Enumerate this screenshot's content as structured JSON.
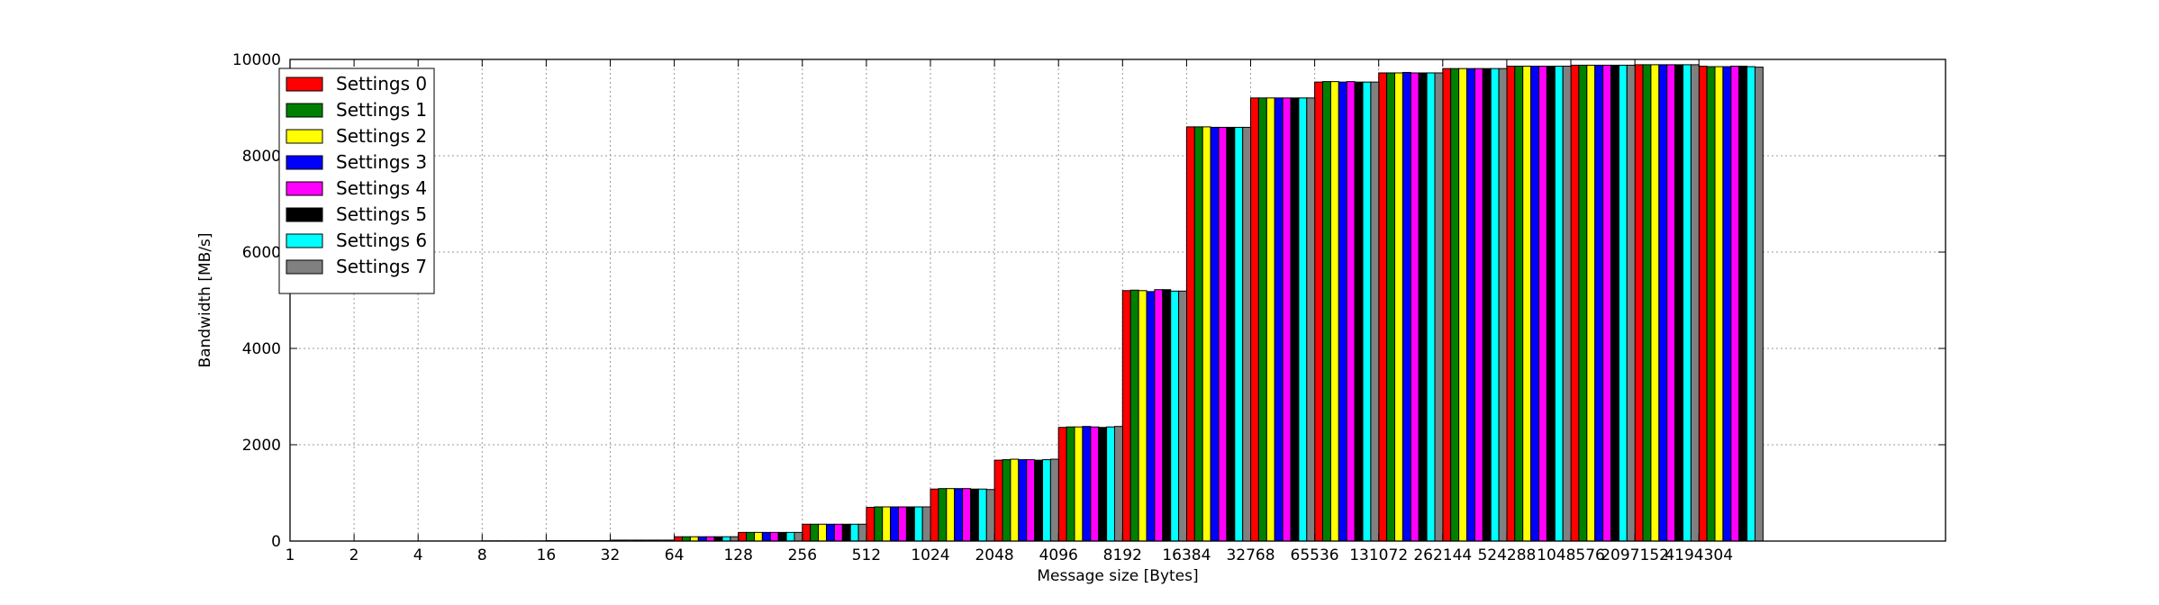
{
  "chart_data": {
    "type": "bar",
    "title": "",
    "xlabel": "Message size [Bytes]",
    "ylabel": "Bandwidth [MB/s]",
    "ylim": [
      0,
      10000
    ],
    "yticks": [
      0,
      2000,
      4000,
      6000,
      8000,
      10000
    ],
    "grid": true,
    "legend_position": "top-left",
    "categories": [
      "1",
      "2",
      "4",
      "8",
      "16",
      "32",
      "64",
      "128",
      "256",
      "512",
      "1024",
      "2048",
      "4096",
      "8192",
      "16384",
      "32768",
      "65536",
      "131072",
      "262144",
      "524288",
      "1048576",
      "2097152",
      "4194304"
    ],
    "series": [
      {
        "name": "Settings 0",
        "color": "#ff0000",
        "values": [
          0.5,
          1,
          2,
          5,
          10,
          20,
          90,
          180,
          350,
          700,
          1080,
          1680,
          2360,
          5200,
          8600,
          9200,
          9530,
          9720,
          9810,
          9860,
          9880,
          9890,
          9860
        ]
      },
      {
        "name": "Settings 1",
        "color": "#008000",
        "values": [
          0.5,
          1,
          2,
          5,
          10,
          20,
          90,
          180,
          350,
          710,
          1090,
          1690,
          2370,
          5210,
          8600,
          9200,
          9540,
          9720,
          9810,
          9860,
          9880,
          9890,
          9850
        ]
      },
      {
        "name": "Settings 2",
        "color": "#ffff00",
        "values": [
          0.5,
          1,
          2,
          5,
          10,
          20,
          90,
          180,
          350,
          710,
          1090,
          1700,
          2370,
          5200,
          8600,
          9200,
          9540,
          9720,
          9810,
          9860,
          9880,
          9890,
          9850
        ]
      },
      {
        "name": "Settings 3",
        "color": "#0000ff",
        "values": [
          0.5,
          1,
          2,
          5,
          10,
          20,
          90,
          180,
          350,
          710,
          1090,
          1690,
          2380,
          5180,
          8590,
          9200,
          9530,
          9730,
          9810,
          9860,
          9880,
          9890,
          9850
        ]
      },
      {
        "name": "Settings 4",
        "color": "#ff00ff",
        "values": [
          0.5,
          1,
          2,
          5,
          10,
          20,
          90,
          180,
          350,
          710,
          1090,
          1690,
          2370,
          5220,
          8590,
          9200,
          9540,
          9720,
          9810,
          9860,
          9880,
          9890,
          9860
        ]
      },
      {
        "name": "Settings 5",
        "color": "#000000",
        "values": [
          0.5,
          1,
          2,
          5,
          10,
          20,
          90,
          180,
          350,
          710,
          1080,
          1680,
          2360,
          5220,
          8590,
          9200,
          9530,
          9720,
          9810,
          9860,
          9880,
          9890,
          9860
        ]
      },
      {
        "name": "Settings 6",
        "color": "#00ffff",
        "values": [
          0.5,
          1,
          2,
          5,
          10,
          20,
          90,
          180,
          350,
          710,
          1080,
          1690,
          2370,
          5190,
          8590,
          9200,
          9530,
          9720,
          9810,
          9860,
          9880,
          9890,
          9850
        ]
      },
      {
        "name": "Settings 7",
        "color": "#808080",
        "values": [
          0.5,
          1,
          2,
          5,
          10,
          20,
          90,
          180,
          350,
          710,
          1070,
          1700,
          2380,
          5190,
          8590,
          9200,
          9530,
          9720,
          9810,
          9860,
          9880,
          9890,
          9840
        ]
      }
    ]
  }
}
